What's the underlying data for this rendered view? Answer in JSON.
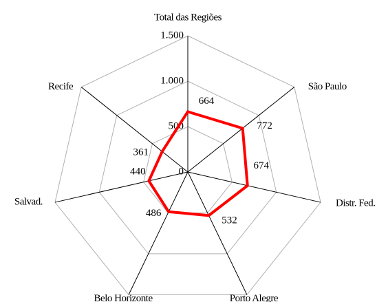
{
  "chart_data": {
    "type": "radar",
    "categories": [
      "Total das Regiões",
      "São Paulo",
      "Distr. Fed.",
      "Porto Alegre",
      "Belo Horizonte",
      "Salvad.",
      "Recife"
    ],
    "values": [
      664,
      772,
      674,
      532,
      486,
      440,
      361
    ],
    "color": "#ff0000",
    "ylim": [
      0,
      1500
    ],
    "yticks": [
      0,
      {
        "value": 500,
        "label": "500"
      },
      {
        "value": 1000,
        "label": "1.000"
      },
      {
        "value": 1500,
        "label": "1.500"
      }
    ],
    "grid": true
  }
}
